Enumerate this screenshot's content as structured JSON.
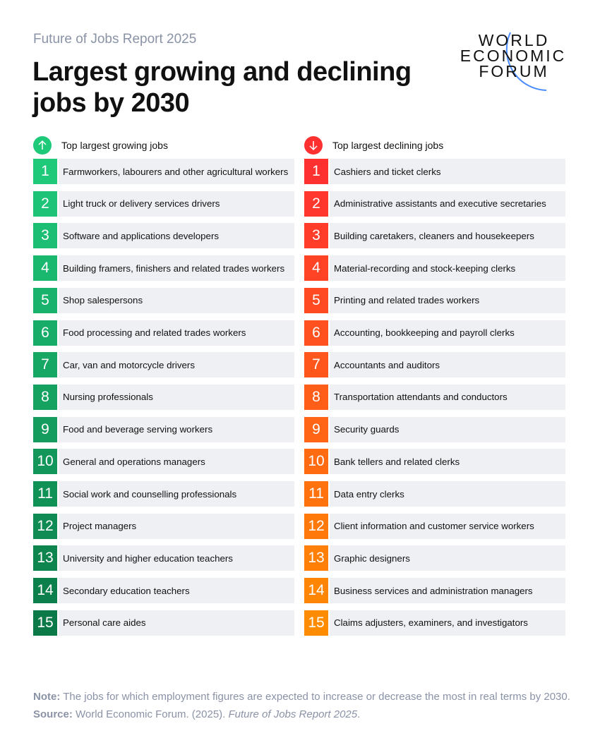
{
  "header": {
    "kicker": "Future of Jobs Report 2025",
    "title": "Largest growing and declining jobs by 2030"
  },
  "logo": {
    "lines": [
      "WORLD",
      "ECONOMIC",
      "FORUM"
    ],
    "arc_color": "#4a8cff"
  },
  "chart_data": {
    "type": "table",
    "growing": {
      "heading": "Top largest growing jobs",
      "icon": "arrow-up-icon",
      "color_start": "#1ec97a",
      "color_end": "#0b7a48",
      "items": [
        "Farmworkers, labourers and other agricultural workers",
        "Light truck or delivery services drivers",
        "Software and applications developers",
        "Building framers, finishers and related trades workers",
        "Shop salespersons",
        "Food processing and related trades workers",
        "Car, van and motorcycle drivers",
        "Nursing professionals",
        "Food and beverage serving workers",
        "General and operations managers",
        "Social work and counselling professionals",
        "Project managers",
        "University and higher education teachers",
        "Secondary education teachers",
        "Personal care aides"
      ]
    },
    "declining": {
      "heading": "Top largest declining jobs",
      "icon": "arrow-down-icon",
      "color_start": "#ff3030",
      "color_end": "#ff8c00",
      "items": [
        "Cashiers and ticket clerks",
        "Administrative assistants and executive secretaries",
        "Building caretakers, cleaners and housekeepers",
        "Material-recording and stock-keeping clerks",
        "Printing and related trades workers",
        "Accounting, bookkeeping and payroll clerks",
        "Accountants and auditors",
        "Transportation attendants and conductors",
        "Security guards",
        "Bank tellers and related clerks",
        "Data entry clerks",
        "Client information and customer service workers",
        "Graphic designers",
        "Business services and administration managers",
        "Claims adjusters, examiners, and investigators"
      ]
    }
  },
  "footer": {
    "note_label": "Note:",
    "note": " The jobs for which employment figures are expected to increase or decrease the most in real terms by 2030.",
    "source_label": "Source:",
    "source": " World Economic Forum. (2025). ",
    "source_title": "Future of Jobs Report 2025",
    "source_end": "."
  }
}
